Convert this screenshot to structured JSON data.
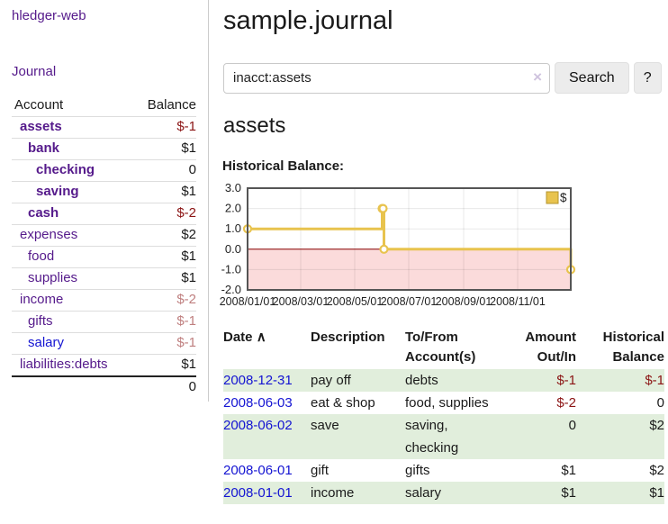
{
  "colors": {
    "link_purple": "#551a8b",
    "link_blue": "#1414d2",
    "negative_strong": "#8b1414",
    "negative_dim": "#bf7f7f",
    "row_stripe_green": "#e1eedc",
    "chart_gold": "#e8c34e",
    "chart_negative_region_pink": "#fbdbdb",
    "zero_line_red": "#8b0000"
  },
  "sidebar": {
    "app_title": "hledger-web",
    "journal_link": "Journal",
    "accounts": {
      "headers": {
        "account": "Account",
        "balance": "Balance"
      },
      "rows": [
        {
          "name": "assets",
          "balance": "$-1",
          "level": 1,
          "bold": true,
          "amount_class": "neg",
          "link_color": "purple"
        },
        {
          "name": "bank",
          "balance": "$1",
          "level": 2,
          "bold": true,
          "amount_class": "",
          "link_color": "purple"
        },
        {
          "name": "checking",
          "balance": "0",
          "level": 3,
          "bold": true,
          "amount_class": "",
          "link_color": "purple"
        },
        {
          "name": "saving",
          "balance": "$1",
          "level": 3,
          "bold": true,
          "amount_class": "",
          "link_color": "purple"
        },
        {
          "name": "cash",
          "balance": "$-2",
          "level": 2,
          "bold": true,
          "amount_class": "neg",
          "link_color": "purple"
        },
        {
          "name": "expenses",
          "balance": "$2",
          "level": 1,
          "bold": false,
          "amount_class": "",
          "link_color": "purple"
        },
        {
          "name": "food",
          "balance": "$1",
          "level": 2,
          "bold": false,
          "amount_class": "",
          "link_color": "purple"
        },
        {
          "name": "supplies",
          "balance": "$1",
          "level": 2,
          "bold": false,
          "amount_class": "",
          "link_color": "purple"
        },
        {
          "name": "income",
          "balance": "$-2",
          "level": 1,
          "bold": false,
          "amount_class": "neg-dim",
          "link_color": "purple"
        },
        {
          "name": "gifts",
          "balance": "$-1",
          "level": 2,
          "bold": false,
          "amount_class": "neg-dim",
          "link_color": "purple"
        },
        {
          "name": "salary",
          "balance": "$-1",
          "level": 2,
          "bold": false,
          "amount_class": "neg-dim",
          "link_color": "blue"
        },
        {
          "name": "liabilities:debts",
          "balance": "$1",
          "level": 1,
          "bold": false,
          "amount_class": "",
          "link_color": "purple"
        }
      ],
      "total": "0"
    }
  },
  "main": {
    "title": "sample.journal",
    "search": {
      "query": "inacct:assets",
      "clear_icon": "×",
      "button": "Search",
      "help": "?"
    },
    "account_heading": "assets",
    "chart_label": "Historical Balance:"
  },
  "chart_data": {
    "type": "line",
    "step": true,
    "title": "Historical Balance:",
    "series": [
      {
        "name": "$",
        "color": "#e8c34e",
        "points": [
          [
            "2008-01-01",
            1
          ],
          [
            "2008-06-01",
            2
          ],
          [
            "2008-06-02",
            2
          ],
          [
            "2008-06-03",
            0
          ],
          [
            "2008-12-31",
            -1
          ]
        ]
      }
    ],
    "x_range": [
      "2008-01-01",
      "2008-12-31"
    ],
    "x_tick_dates": [
      "2008-01-01",
      "2008-03-01",
      "2008-05-01",
      "2008-07-01",
      "2008-09-01",
      "2008-11-01"
    ],
    "x_tick_labels": [
      "2008/01/01",
      "2008/03/01",
      "2008/05/01",
      "2008/07/01",
      "2008/09/01",
      "2008/11/01"
    ],
    "y_ticks": [
      "3.0",
      "2.0",
      "1.0",
      "0.0",
      "-1.0",
      "-2.0"
    ],
    "ylim": [
      -2,
      3
    ],
    "grid": true,
    "legend": {
      "position": "top-right",
      "label": "$"
    },
    "negative_region_below": 0
  },
  "register": {
    "headers": {
      "date": "Date",
      "sort_icon": "∧",
      "description": "Description",
      "tofrom": "To/From Account(s)",
      "amount": "Amount Out/In",
      "balance": "Historical Balance"
    },
    "rows": [
      {
        "date": "2008-12-31",
        "description": "pay off",
        "accounts": "debts",
        "amount": "$-1",
        "balance": "$-1",
        "amount_neg": true,
        "balance_neg": true,
        "striped": true
      },
      {
        "date": "2008-06-03",
        "description": "eat & shop",
        "accounts": "food, supplies",
        "amount": "$-2",
        "balance": "0",
        "amount_neg": true,
        "balance_neg": false,
        "striped": false
      },
      {
        "date": "2008-06-02",
        "description": "save",
        "accounts": "saving, checking",
        "amount": "0",
        "balance": "$2",
        "amount_neg": false,
        "balance_neg": false,
        "striped": true
      },
      {
        "date": "2008-06-01",
        "description": "gift",
        "accounts": "gifts",
        "amount": "$1",
        "balance": "$2",
        "amount_neg": false,
        "balance_neg": false,
        "striped": false
      },
      {
        "date": "2008-01-01",
        "description": "income",
        "accounts": "salary",
        "amount": "$1",
        "balance": "$1",
        "amount_neg": false,
        "balance_neg": false,
        "striped": true
      }
    ]
  }
}
